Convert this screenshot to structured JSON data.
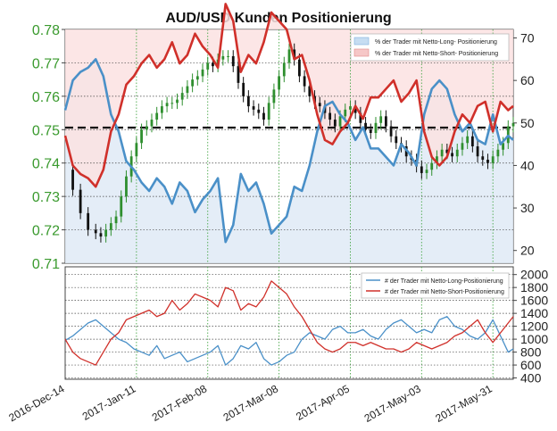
{
  "chart_data": [
    {
      "type": "line",
      "title": "AUD/USD Kunden Positionierung",
      "price": {
        "name": "AUD/USD",
        "ylim": [
          0.71,
          0.78
        ],
        "yticks": [
          "0.78",
          "0.77",
          "0.76",
          "0.75",
          "0.74",
          "0.73",
          "0.72",
          "0.71"
        ],
        "x": [
          0,
          3,
          6,
          9,
          12,
          14,
          16,
          18,
          20,
          22,
          24,
          26,
          28,
          30,
          32,
          34,
          36,
          38,
          40,
          42,
          44,
          46,
          48,
          50,
          52,
          54,
          56,
          58,
          60,
          62,
          64,
          66,
          68,
          70,
          72,
          74,
          76,
          78,
          80,
          82,
          84,
          86,
          88,
          90,
          92,
          94,
          96,
          98,
          100,
          102,
          104,
          106,
          108,
          110,
          112,
          114,
          116,
          118,
          120,
          122,
          124,
          126,
          128,
          130,
          132,
          134,
          136,
          138,
          140,
          142,
          144,
          146,
          148,
          150,
          152,
          154,
          156,
          158,
          160,
          162,
          164,
          166,
          168,
          170,
          172,
          174,
          176
        ],
        "values": [
          0.738,
          0.732,
          0.725,
          0.72,
          0.719,
          0.718,
          0.72,
          0.722,
          0.724,
          0.73,
          0.736,
          0.742,
          0.746,
          0.75,
          0.751,
          0.753,
          0.755,
          0.757,
          0.758,
          0.758,
          0.759,
          0.761,
          0.763,
          0.765,
          0.766,
          0.768,
          0.77,
          0.769,
          0.771,
          0.772,
          0.772,
          0.769,
          0.764,
          0.76,
          0.757,
          0.756,
          0.755,
          0.753,
          0.758,
          0.762,
          0.766,
          0.77,
          0.774,
          0.771,
          0.766,
          0.763,
          0.76,
          0.758,
          0.757,
          0.755,
          0.753,
          0.751,
          0.754,
          0.756,
          0.757,
          0.755,
          0.752,
          0.75,
          0.749,
          0.752,
          0.754,
          0.751,
          0.748,
          0.746,
          0.745,
          0.742,
          0.741,
          0.739,
          0.737,
          0.738,
          0.74,
          0.742,
          0.744,
          0.743,
          0.742,
          0.744,
          0.746,
          0.748,
          0.745,
          0.742,
          0.741,
          0.74,
          0.742,
          0.744,
          0.746,
          0.751,
          0.752
        ]
      },
      "sentiment": {
        "ylim": [
          17,
          72
        ],
        "yticks": [
          "70",
          "60",
          "50",
          "40",
          "30",
          "20"
        ],
        "x": [
          0,
          3,
          6,
          9,
          12,
          15,
          18,
          21,
          24,
          27,
          30,
          33,
          36,
          39,
          42,
          45,
          48,
          51,
          54,
          57,
          60,
          63,
          66,
          69,
          72,
          75,
          78,
          81,
          84,
          87,
          90,
          93,
          96,
          99,
          102,
          105,
          108,
          111,
          114,
          117,
          120,
          123,
          126,
          129,
          132,
          135,
          138,
          141,
          144,
          147,
          150,
          153,
          156,
          159,
          162,
          165,
          168,
          171,
          174,
          176
        ],
        "series": [
          {
            "name": "% der Trader mit Netto-Long- Positionierung",
            "color": "#4a90c8",
            "values": [
              53,
              60,
              62,
              63,
              65,
              61,
              52,
              48,
              41,
              39,
              36,
              34,
              37,
              35,
              31,
              36,
              34,
              29,
              32,
              34,
              37,
              22,
              26,
              38,
              34,
              36,
              31,
              24,
              26,
              28,
              35,
              34,
              40,
              48,
              54,
              55,
              52,
              50,
              46,
              49,
              44,
              44,
              42,
              40,
              45,
              43,
              40,
              52,
              58,
              60,
              58,
              52,
              48,
              50,
              46,
              45,
              52,
              45,
              47,
              46
            ]
          },
          {
            "name": "% der Trader mit Netto-Short- Positionierung",
            "color": "#d0302a",
            "values": [
              47,
              40,
              38,
              37,
              35,
              39,
              48,
              52,
              59,
              61,
              64,
              66,
              63,
              65,
              69,
              64,
              66,
              71,
              68,
              66,
              63,
              78,
              74,
              62,
              66,
              64,
              69,
              76,
              74,
              72,
              65,
              66,
              60,
              52,
              46,
              45,
              48,
              50,
              54,
              51,
              56,
              56,
              58,
              60,
              55,
              57,
              60,
              48,
              42,
              40,
              42,
              48,
              52,
              50,
              54,
              55,
              48,
              55,
              53,
              54
            ]
          }
        ]
      },
      "counts": {
        "ylim": [
          380,
          2120
        ],
        "yticks": [
          "2000",
          "1800",
          "1600",
          "1400",
          "1200",
          "1000",
          "800",
          "600",
          "400"
        ],
        "x": [
          0,
          3,
          6,
          9,
          12,
          15,
          18,
          21,
          24,
          27,
          30,
          33,
          36,
          39,
          42,
          45,
          48,
          51,
          54,
          57,
          60,
          63,
          66,
          69,
          72,
          75,
          78,
          81,
          84,
          87,
          90,
          93,
          96,
          99,
          102,
          105,
          108,
          111,
          114,
          117,
          120,
          123,
          126,
          129,
          132,
          135,
          138,
          141,
          144,
          147,
          150,
          153,
          156,
          159,
          162,
          165,
          168,
          171,
          174,
          176
        ],
        "series": [
          {
            "name": "# der Trader mit Netto-Long-Positionierung",
            "color": "#4a90c8",
            "values": [
              980,
              1050,
              1150,
              1250,
              1300,
              1200,
              1100,
              1000,
              950,
              850,
              800,
              750,
              900,
              700,
              750,
              800,
              650,
              700,
              750,
              800,
              900,
              600,
              700,
              900,
              850,
              950,
              700,
              600,
              650,
              750,
              800,
              1000,
              1100,
              1050,
              1000,
              1150,
              1200,
              1100,
              1100,
              1150,
              1050,
              1000,
              1150,
              1250,
              1300,
              1200,
              1100,
              1150,
              1100,
              1300,
              1350,
              1200,
              1150,
              1050,
              1000,
              1100,
              1300,
              1050,
              800,
              850
            ]
          },
          {
            "name": "# der Trader mit Netto-Short-Positionierung",
            "color": "#d0302a",
            "values": [
              1000,
              800,
              700,
              650,
              600,
              800,
              1000,
              1100,
              1300,
              1350,
              1400,
              1450,
              1350,
              1400,
              1600,
              1450,
              1550,
              1700,
              1650,
              1600,
              1500,
              1800,
              1750,
              1450,
              1550,
              1500,
              1650,
              1900,
              1800,
              1700,
              1500,
              1350,
              1150,
              950,
              850,
              800,
              850,
              950,
              950,
              900,
              950,
              900,
              850,
              850,
              800,
              850,
              950,
              900,
              850,
              900,
              950,
              1050,
              1100,
              1200,
              1300,
              1100,
              950,
              1100,
              1250,
              1350
            ]
          }
        ]
      },
      "x_labels": [
        "2016-Dec-14",
        "2017-Jan-11",
        "2017-Feb-08",
        "2017-Mar-08",
        "2017-Apr-05",
        "2017-May-03",
        "2017-May-31"
      ],
      "grid": true,
      "legend_position": "top-right"
    }
  ]
}
